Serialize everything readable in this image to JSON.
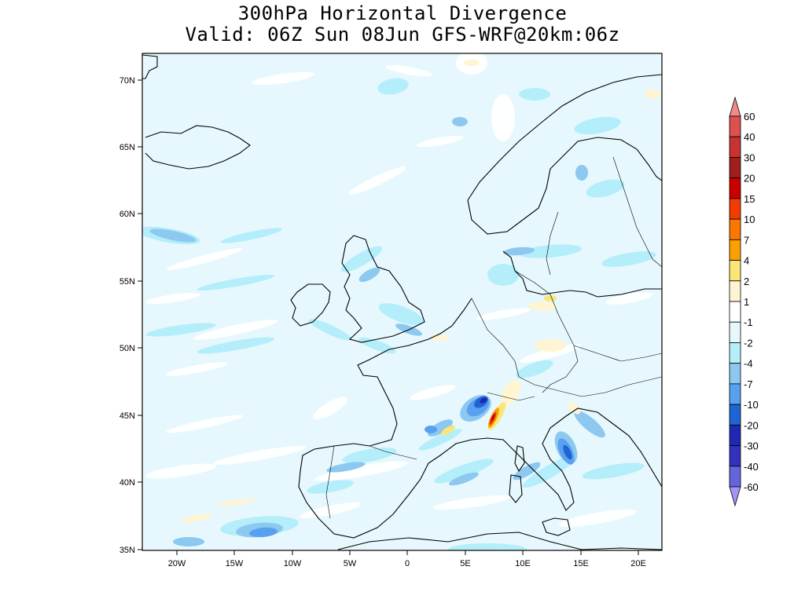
{
  "title_line1": "300hPa Horizontal Divergence",
  "title_line2": "Valid: 06Z Sun 08Jun GFS-WRF@20km:06z",
  "map": {
    "lon_range": [
      -23,
      22
    ],
    "lat_range": [
      35,
      72
    ],
    "lat_ticks": [
      "70N",
      "65N",
      "60N",
      "55N",
      "50N",
      "45N",
      "40N",
      "35N"
    ],
    "lon_ticks": [
      "20W",
      "15W",
      "10W",
      "5W",
      "0",
      "5E",
      "10E",
      "15E",
      "20E"
    ],
    "background_color": "#e6f8fd"
  },
  "colorbar": {
    "labels": [
      "60",
      "40",
      "30",
      "20",
      "15",
      "10",
      "7",
      "4",
      "2",
      "1",
      "-1",
      "-2",
      "-4",
      "-7",
      "-10",
      "-20",
      "-30",
      "-40",
      "-60"
    ],
    "colors": [
      "#f08a8a",
      "#dc5050",
      "#c83232",
      "#a01e1e",
      "#c80000",
      "#f03c00",
      "#fa7800",
      "#faa000",
      "#fae678",
      "#fff5d2",
      "#ffffff",
      "#e6f8fd",
      "#b4eefa",
      "#8cc8f0",
      "#5aa0f0",
      "#1e64d2",
      "#1e28b4",
      "#3232be",
      "#6464dc",
      "#a096f5"
    ]
  }
}
